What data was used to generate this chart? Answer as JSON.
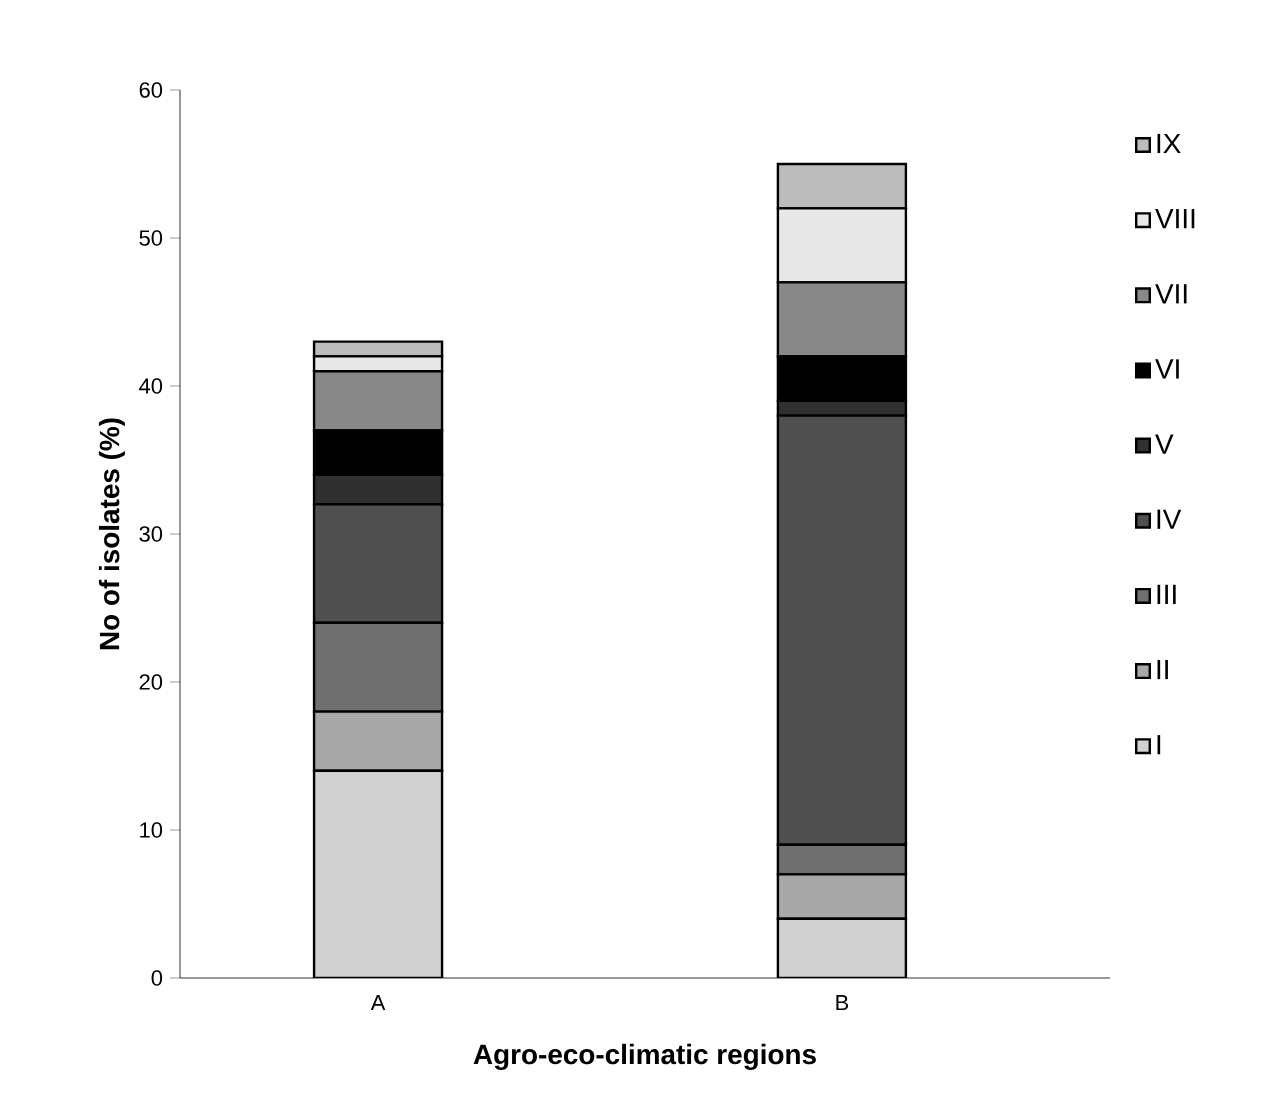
{
  "chart_data": {
    "type": "bar",
    "stacked": true,
    "xlabel": "Agro-eco-climatic regions",
    "ylabel": "No of isolates (%)",
    "categories": [
      "A",
      "B"
    ],
    "series": [
      {
        "name": "I",
        "color": "#d0d0d0",
        "values": [
          14,
          4
        ]
      },
      {
        "name": "II",
        "color": "#a8a8a8",
        "values": [
          4,
          3
        ]
      },
      {
        "name": "III",
        "color": "#707070",
        "values": [
          6,
          2
        ]
      },
      {
        "name": "IV",
        "color": "#505050",
        "values": [
          8,
          29
        ]
      },
      {
        "name": "V",
        "color": "#303030",
        "values": [
          2,
          1
        ]
      },
      {
        "name": "VI",
        "color": "#000000",
        "values": [
          3,
          3
        ]
      },
      {
        "name": "VII",
        "color": "#888888",
        "values": [
          4,
          5
        ]
      },
      {
        "name": "VIII",
        "color": "#e8e8e8",
        "values": [
          1,
          5
        ]
      },
      {
        "name": "IX",
        "color": "#bcbcbc",
        "values": [
          1,
          3
        ]
      }
    ],
    "ylim": [
      0,
      60
    ],
    "yticks": [
      0,
      10,
      20,
      30,
      40,
      50,
      60
    ],
    "grid": false,
    "legend": "right"
  }
}
